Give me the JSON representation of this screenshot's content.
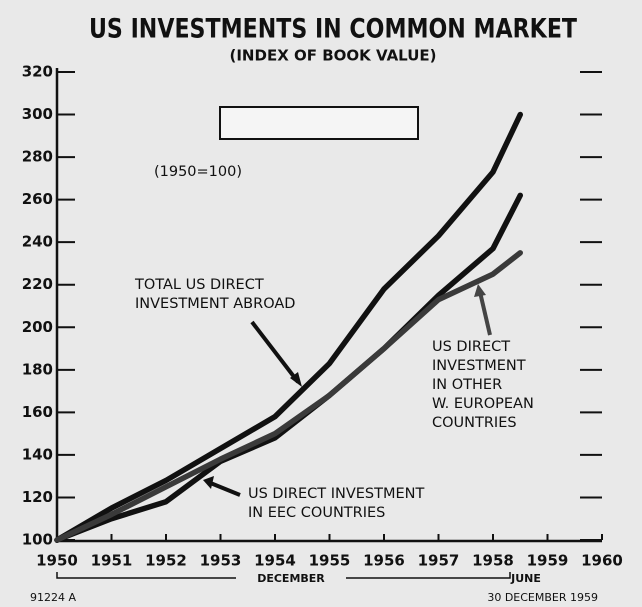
{
  "chart_data": {
    "type": "line",
    "title": "US INVESTMENTS IN COMMON MARKET",
    "subtitle": "(INDEX OF BOOK VALUE)",
    "base_note": "(1950=100)",
    "x": [
      1950,
      1951,
      1952,
      1953,
      1954,
      1955,
      1956,
      1957,
      1958,
      1958.5
    ],
    "series": [
      {
        "color": "#111111",
        "values": [
          100,
          115,
          128,
          143,
          158,
          183,
          218,
          243,
          273,
          300
        ]
      },
      {
        "color": "#111111",
        "values": [
          100,
          110,
          118,
          137,
          148,
          168,
          190,
          215,
          237,
          262
        ]
      },
      {
        "color": "#3a3a3a",
        "values": [
          100,
          112,
          125,
          138,
          150,
          168,
          190,
          213,
          225,
          235
        ]
      }
    ],
    "annotations": [
      {
        "lines": [
          "TOTAL US DIRECT",
          "INVESTMENT ABROAD"
        ]
      },
      {
        "lines": [
          "US DIRECT INVESTMENT",
          "IN EEC COUNTRIES"
        ]
      },
      {
        "lines": [
          "US DIRECT",
          "INVESTMENT",
          "IN OTHER",
          "W. EUROPEAN",
          "COUNTRIES"
        ]
      }
    ],
    "period_labels": [
      "DECEMBER",
      "JUNE"
    ],
    "xlim": [
      1950,
      1960
    ],
    "xticks": [
      1950,
      1951,
      1952,
      1953,
      1954,
      1955,
      1956,
      1957,
      1958,
      1959,
      1960
    ],
    "ylim": [
      100,
      320
    ],
    "yticks": [
      100,
      120,
      140,
      160,
      180,
      200,
      220,
      240,
      260,
      280,
      300,
      320
    ],
    "footer_left": "91224 A",
    "footer_right": "30 DECEMBER 1959"
  }
}
